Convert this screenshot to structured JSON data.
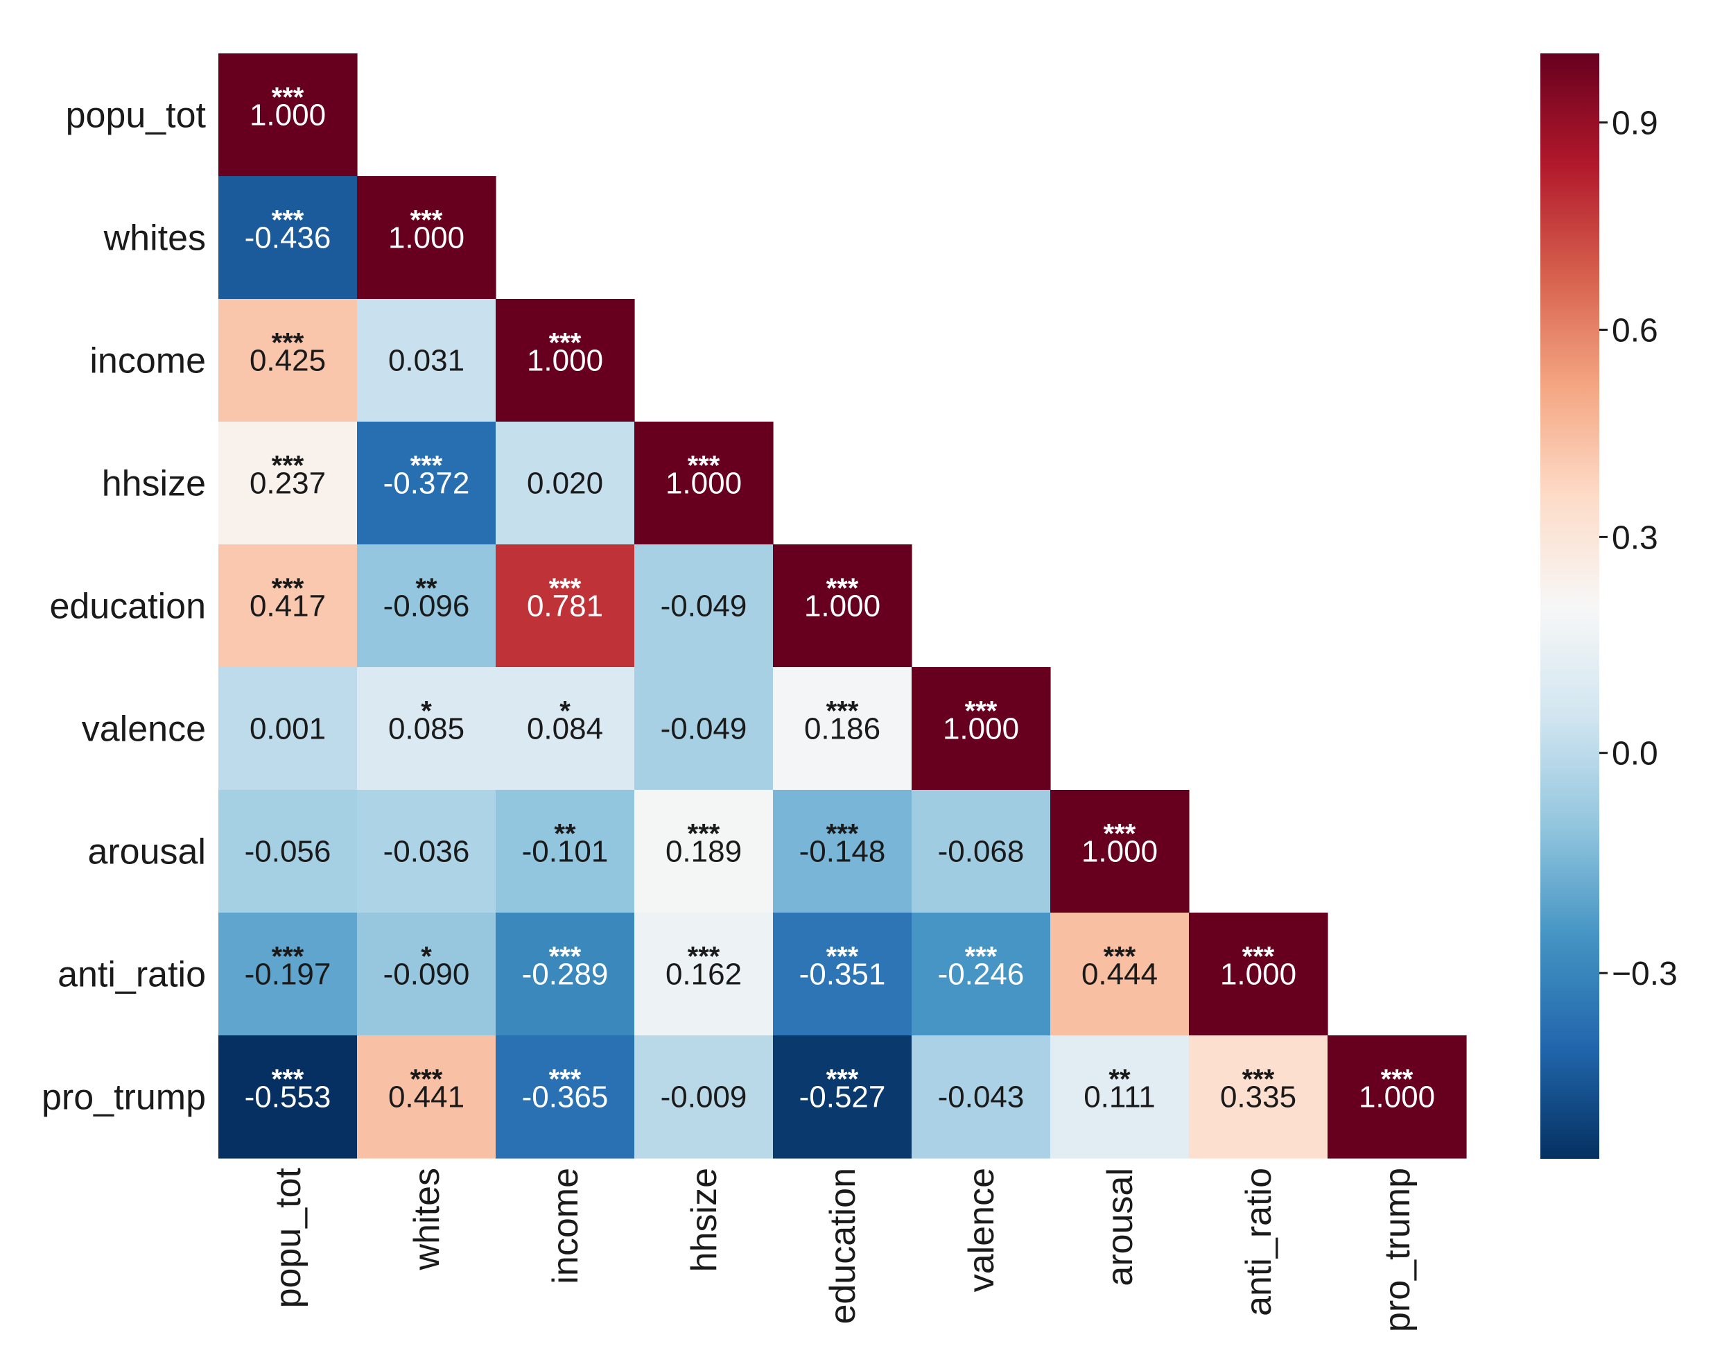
{
  "chart_data": {
    "type": "heatmap",
    "variables": [
      "popu_tot",
      "whites",
      "income",
      "hhsize",
      "education",
      "valence",
      "arousal",
      "anti_ratio",
      "pro_trump"
    ],
    "matrix": [
      [
        "1.000"
      ],
      [
        "-0.436",
        "1.000"
      ],
      [
        "0.425",
        "0.031",
        "1.000"
      ],
      [
        "0.237",
        "-0.372",
        "0.020",
        "1.000"
      ],
      [
        "0.417",
        "-0.096",
        "0.781",
        "-0.049",
        "1.000"
      ],
      [
        "0.001",
        "0.085",
        "0.084",
        "-0.049",
        "0.186",
        "1.000"
      ],
      [
        "-0.056",
        "-0.036",
        "-0.101",
        "0.189",
        "-0.148",
        "-0.068",
        "1.000"
      ],
      [
        "-0.197",
        "-0.090",
        "-0.289",
        "0.162",
        "-0.351",
        "-0.246",
        "0.444",
        "1.000"
      ],
      [
        "-0.553",
        "0.441",
        "-0.365",
        "-0.009",
        "-0.527",
        "-0.043",
        "0.111",
        "0.335",
        "1.000"
      ]
    ],
    "significance": [
      [
        "***"
      ],
      [
        "***",
        "***"
      ],
      [
        "***",
        "",
        "***"
      ],
      [
        "***",
        "***",
        "",
        "***"
      ],
      [
        "***",
        "**",
        "***",
        "",
        "***"
      ],
      [
        "",
        "*",
        "*",
        "",
        "***",
        "***"
      ],
      [
        "",
        "",
        "**",
        "***",
        "***",
        "",
        "***"
      ],
      [
        "***",
        "*",
        "***",
        "***",
        "***",
        "***",
        "***",
        "***"
      ],
      [
        "***",
        "***",
        "***",
        "",
        "***",
        "",
        "**",
        "***",
        "***"
      ]
    ],
    "colorbar": {
      "colormap": "RdBu_r",
      "vmin": -0.553,
      "vmax": 1.0,
      "center": 0.2,
      "ticks": [
        0.9,
        0.6,
        0.3,
        0.0,
        -0.3
      ],
      "tick_labels": [
        "0.9",
        "0.6",
        "0.3",
        "0.0",
        "−0.3"
      ]
    }
  }
}
